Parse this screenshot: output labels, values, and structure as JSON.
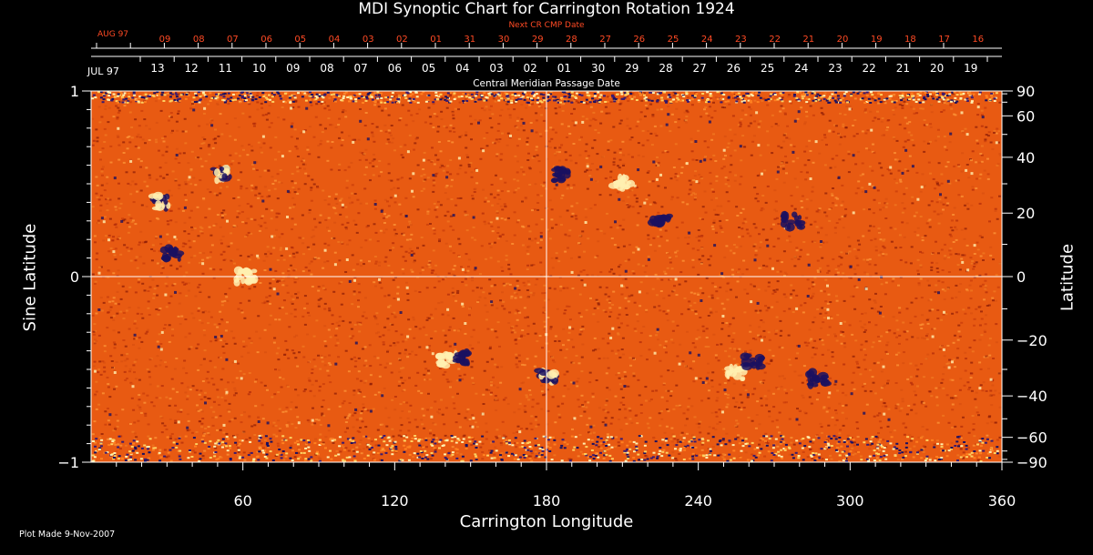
{
  "title": "MDI Synoptic Chart for Carrington Rotation 1924",
  "top_scale": {
    "label": "Next CR CMP Date",
    "start_month": "AUG 97",
    "dates": [
      "09",
      "08",
      "07",
      "06",
      "05",
      "04",
      "03",
      "02",
      "01",
      "31",
      "30",
      "29",
      "28",
      "27",
      "26",
      "25",
      "24",
      "23",
      "22",
      "21",
      "20",
      "19",
      "18",
      "17",
      "16"
    ]
  },
  "bottom_scale": {
    "start_month": "JUL 97",
    "dates": [
      "13",
      "12",
      "11",
      "10",
      "09",
      "08",
      "07",
      "06",
      "05",
      "04",
      "03",
      "02",
      "01",
      "30",
      "29",
      "28",
      "27",
      "26",
      "25",
      "24",
      "23",
      "22",
      "21",
      "20",
      "19"
    ]
  },
  "cmp_label": "Central Meridian Passage Date",
  "plot_made": "Plot Made  9-Nov-2007",
  "colors": {
    "background": "#000000",
    "axis": "#ffffff",
    "accent_text": "#ff4a24",
    "field_base": "#e85a12",
    "positive_polarity": "#fff0b0",
    "negative_polarity": "#1a1060"
  },
  "chart_data": {
    "type": "heatmap",
    "title": "MDI Synoptic Chart for Carrington Rotation 1924",
    "xlabel": "Carrington Longitude",
    "ylabel": "Sine Latitude",
    "y2label": "Latitude",
    "xlim": [
      0,
      360
    ],
    "ylim": [
      -1,
      1
    ],
    "x_ticks": [
      60,
      120,
      180,
      240,
      300,
      360
    ],
    "y_ticks": [
      -1,
      0,
      1
    ],
    "y2_ticks": [
      -90,
      -60,
      -40,
      -20,
      0,
      20,
      40,
      60,
      90
    ],
    "grid": "crosshair at longitude 180 and sine latitude 0",
    "active_regions": [
      {
        "lon": 28,
        "sinlat": 0.4,
        "polarity": "mixed"
      },
      {
        "lon": 32,
        "sinlat": 0.12,
        "polarity": "negative"
      },
      {
        "lon": 52,
        "sinlat": 0.55,
        "polarity": "mixed"
      },
      {
        "lon": 61,
        "sinlat": 0.0,
        "polarity": "positive"
      },
      {
        "lon": 141,
        "sinlat": -0.45,
        "polarity": "positive"
      },
      {
        "lon": 146,
        "sinlat": -0.44,
        "polarity": "negative"
      },
      {
        "lon": 180,
        "sinlat": -0.53,
        "polarity": "mixed"
      },
      {
        "lon": 186,
        "sinlat": 0.55,
        "polarity": "negative"
      },
      {
        "lon": 210,
        "sinlat": 0.5,
        "polarity": "positive"
      },
      {
        "lon": 225,
        "sinlat": 0.3,
        "polarity": "negative"
      },
      {
        "lon": 255,
        "sinlat": -0.52,
        "polarity": "positive"
      },
      {
        "lon": 262,
        "sinlat": -0.46,
        "polarity": "negative"
      },
      {
        "lon": 287,
        "sinlat": -0.55,
        "polarity": "negative"
      },
      {
        "lon": 277,
        "sinlat": 0.3,
        "polarity": "negative"
      }
    ]
  }
}
